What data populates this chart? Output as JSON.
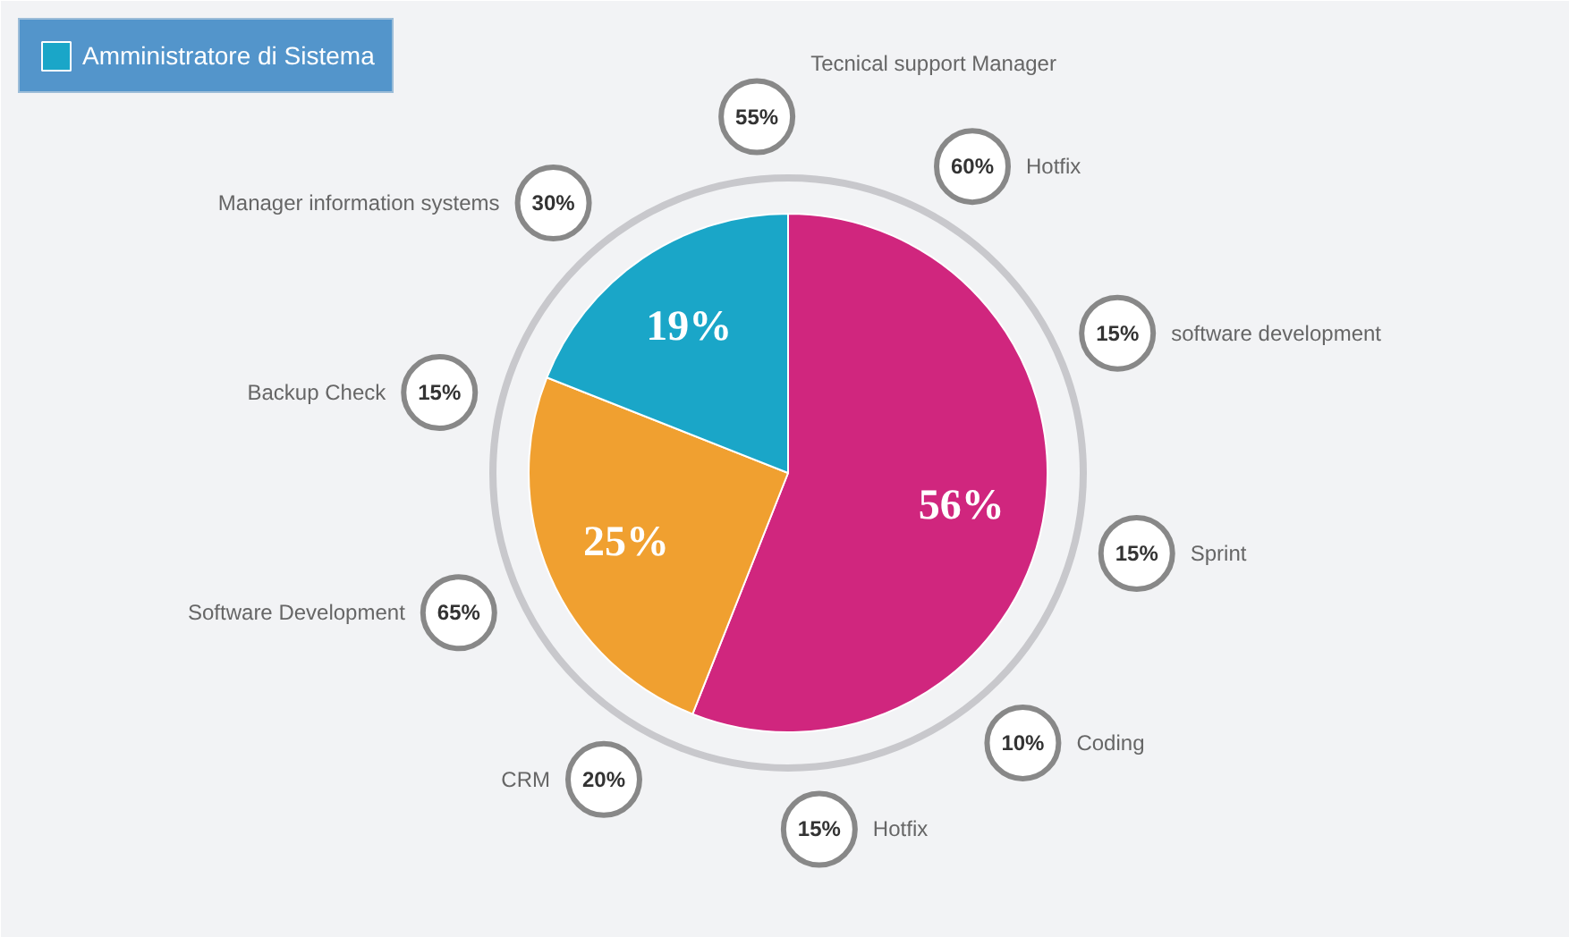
{
  "chart_data": {
    "type": "pie",
    "categories": [
      null,
      null,
      "Amministratore di Sistema"
    ],
    "values": [
      56,
      25,
      19
    ],
    "colors": [
      "#d0267e",
      "#f0a030",
      "#1aa6c8"
    ],
    "value_labels": [
      "56%",
      "25%",
      "19%"
    ],
    "legend": "top left",
    "annotations": [
      "55%",
      "Tecnical support Manager",
      "60%",
      "Hotfix",
      "15%",
      "software development",
      "15%",
      "Sprint",
      "10%",
      "Coding",
      "15%",
      "Hotfix",
      "20%",
      "CRM",
      "65%",
      "Software Development",
      "15%",
      "Backup Check",
      "30%",
      "Manager information systems"
    ]
  }
}
